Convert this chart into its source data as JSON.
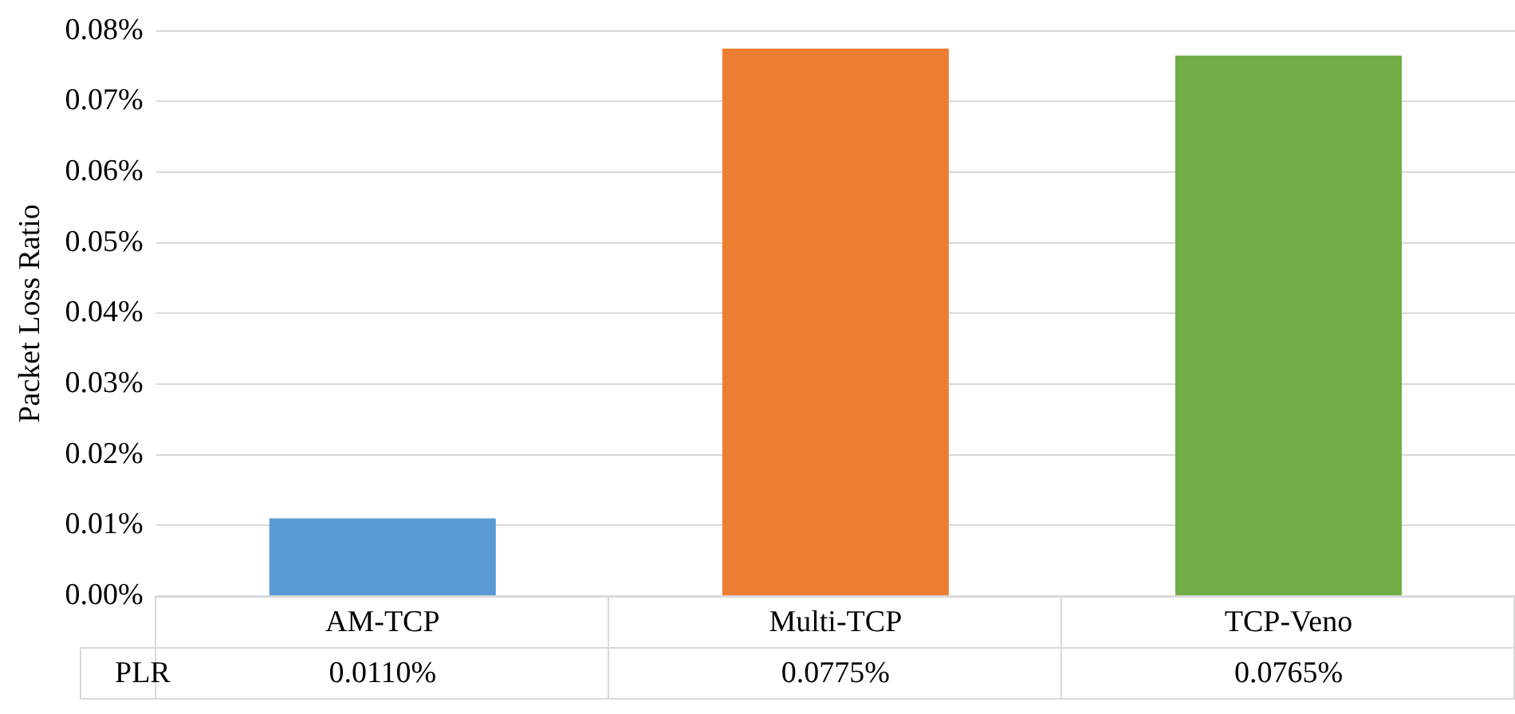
{
  "chart_data": {
    "type": "bar",
    "ylabel": "Packet Loss Ratio",
    "categories": [
      "AM-TCP",
      "Multi-TCP",
      "TCP-Veno"
    ],
    "series": [
      {
        "name": "PLR",
        "colors": [
          "#5b9bd5",
          "#ed7d31",
          "#70ad47"
        ],
        "values": [
          0.011,
          0.0775,
          0.0765
        ],
        "value_labels": [
          "0.0110%",
          "0.0775%",
          "0.0765%"
        ]
      }
    ],
    "ylim": [
      0,
      0.08
    ],
    "yticks": [
      {
        "value": 0,
        "label": "0.00%"
      },
      {
        "value": 0.01,
        "label": "0.01%"
      },
      {
        "value": 0.02,
        "label": "0.02%"
      },
      {
        "value": 0.03,
        "label": "0.03%"
      },
      {
        "value": 0.04,
        "label": "0.04%"
      },
      {
        "value": 0.05,
        "label": "0.05%"
      },
      {
        "value": 0.06,
        "label": "0.06%"
      },
      {
        "value": 0.07,
        "label": "0.07%"
      },
      {
        "value": 0.08,
        "label": "0.08%"
      }
    ],
    "grid": true,
    "legend": false
  }
}
